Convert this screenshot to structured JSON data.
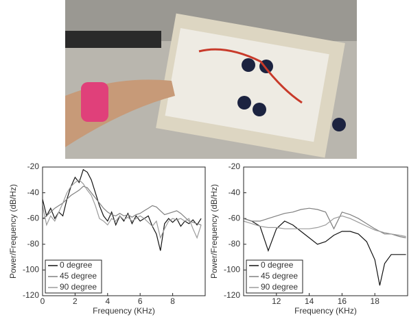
{
  "chart_data": [
    {
      "type": "line",
      "xlabel": "Frequency (KHz)",
      "ylabel": "Power/Frequency (dB/Hz)",
      "xlim": [
        0,
        10
      ],
      "xticks": [
        0,
        2,
        4,
        6,
        8
      ],
      "ylim": [
        -120,
        -20
      ],
      "yticks": [
        -120,
        -100,
        -80,
        -60,
        -40,
        -20
      ],
      "legend": "lower left",
      "x": [
        0,
        0.25,
        0.5,
        0.75,
        1,
        1.25,
        1.5,
        1.75,
        2,
        2.25,
        2.5,
        2.75,
        3,
        3.25,
        3.5,
        3.75,
        4,
        4.25,
        4.5,
        4.75,
        5,
        5.25,
        5.5,
        5.75,
        6,
        6.25,
        6.5,
        6.75,
        7,
        7.25,
        7.5,
        7.75,
        8,
        8.25,
        8.5,
        8.75,
        9,
        9.25,
        9.5,
        9.75
      ],
      "series": [
        {
          "name": "0 degree",
          "color": "#111111",
          "values": [
            -45,
            -58,
            -52,
            -60,
            -55,
            -58,
            -45,
            -35,
            -28,
            -32,
            -22,
            -24,
            -30,
            -40,
            -50,
            -58,
            -62,
            -55,
            -65,
            -58,
            -62,
            -56,
            -64,
            -58,
            -62,
            -60,
            -58,
            -66,
            -72,
            -85,
            -64,
            -60,
            -63,
            -60,
            -66,
            -62,
            -64,
            -61,
            -65,
            -60
          ]
        },
        {
          "name": "45 degree",
          "color": "#7f7f7f",
          "values": [
            -60,
            -58,
            -55,
            -52,
            -50,
            -48,
            -45,
            -42,
            -40,
            -38,
            -35,
            -36,
            -40,
            -44,
            -48,
            -52,
            -55,
            -57,
            -58,
            -56,
            -58,
            -57,
            -59,
            -57,
            -56,
            -54,
            -52,
            -50,
            -51,
            -54,
            -57,
            -56,
            -55,
            -54,
            -56,
            -59,
            -62,
            -63,
            -64,
            -65
          ]
        },
        {
          "name": "90 degree",
          "color": "#9a9a9a",
          "values": [
            -50,
            -65,
            -58,
            -62,
            -55,
            -48,
            -40,
            -35,
            -32,
            -30,
            -33,
            -38,
            -42,
            -50,
            -60,
            -62,
            -65,
            -60,
            -62,
            -58,
            -61,
            -59,
            -62,
            -60,
            -58,
            -60,
            -63,
            -66,
            -62,
            -75,
            -68,
            -62,
            -60,
            -61,
            -60,
            -62,
            -60,
            -68,
            -75,
            -65
          ]
        }
      ]
    },
    {
      "type": "line",
      "xlabel": "Frequency (KHz)",
      "ylabel": "Power/Frequency (dB/Hz)",
      "xlim": [
        10,
        20
      ],
      "xticks": [
        12,
        14,
        16,
        18
      ],
      "ylim": [
        -120,
        -20
      ],
      "yticks": [
        -120,
        -100,
        -80,
        -60,
        -40,
        -20
      ],
      "legend": "lower left",
      "x": [
        10,
        10.5,
        11,
        11.5,
        12,
        12.5,
        13,
        13.5,
        14,
        14.5,
        15,
        15.5,
        16,
        16.5,
        17,
        17.5,
        18,
        18.3,
        18.6,
        19,
        19.5,
        19.9
      ],
      "series": [
        {
          "name": "0 degree",
          "color": "#111111",
          "values": [
            -60,
            -62,
            -66,
            -85,
            -68,
            -62,
            -65,
            -70,
            -75,
            -80,
            -78,
            -73,
            -70,
            -70,
            -72,
            -78,
            -92,
            -112,
            -95,
            -88,
            -88,
            -88
          ]
        },
        {
          "name": "45 degree",
          "color": "#7f7f7f",
          "values": [
            -60,
            -62,
            -62,
            -60,
            -58,
            -56,
            -55,
            -53,
            -52,
            -53,
            -55,
            -68,
            -55,
            -57,
            -60,
            -64,
            -68,
            -70,
            -72,
            -72,
            -74,
            -75
          ]
        },
        {
          "name": "90 degree",
          "color": "#9a9a9a",
          "values": [
            -62,
            -64,
            -66,
            -67,
            -67,
            -68,
            -68,
            -68,
            -68,
            -67,
            -65,
            -60,
            -58,
            -60,
            -63,
            -66,
            -69,
            -70,
            -71,
            -72,
            -73,
            -74
          ]
        }
      ]
    }
  ]
}
